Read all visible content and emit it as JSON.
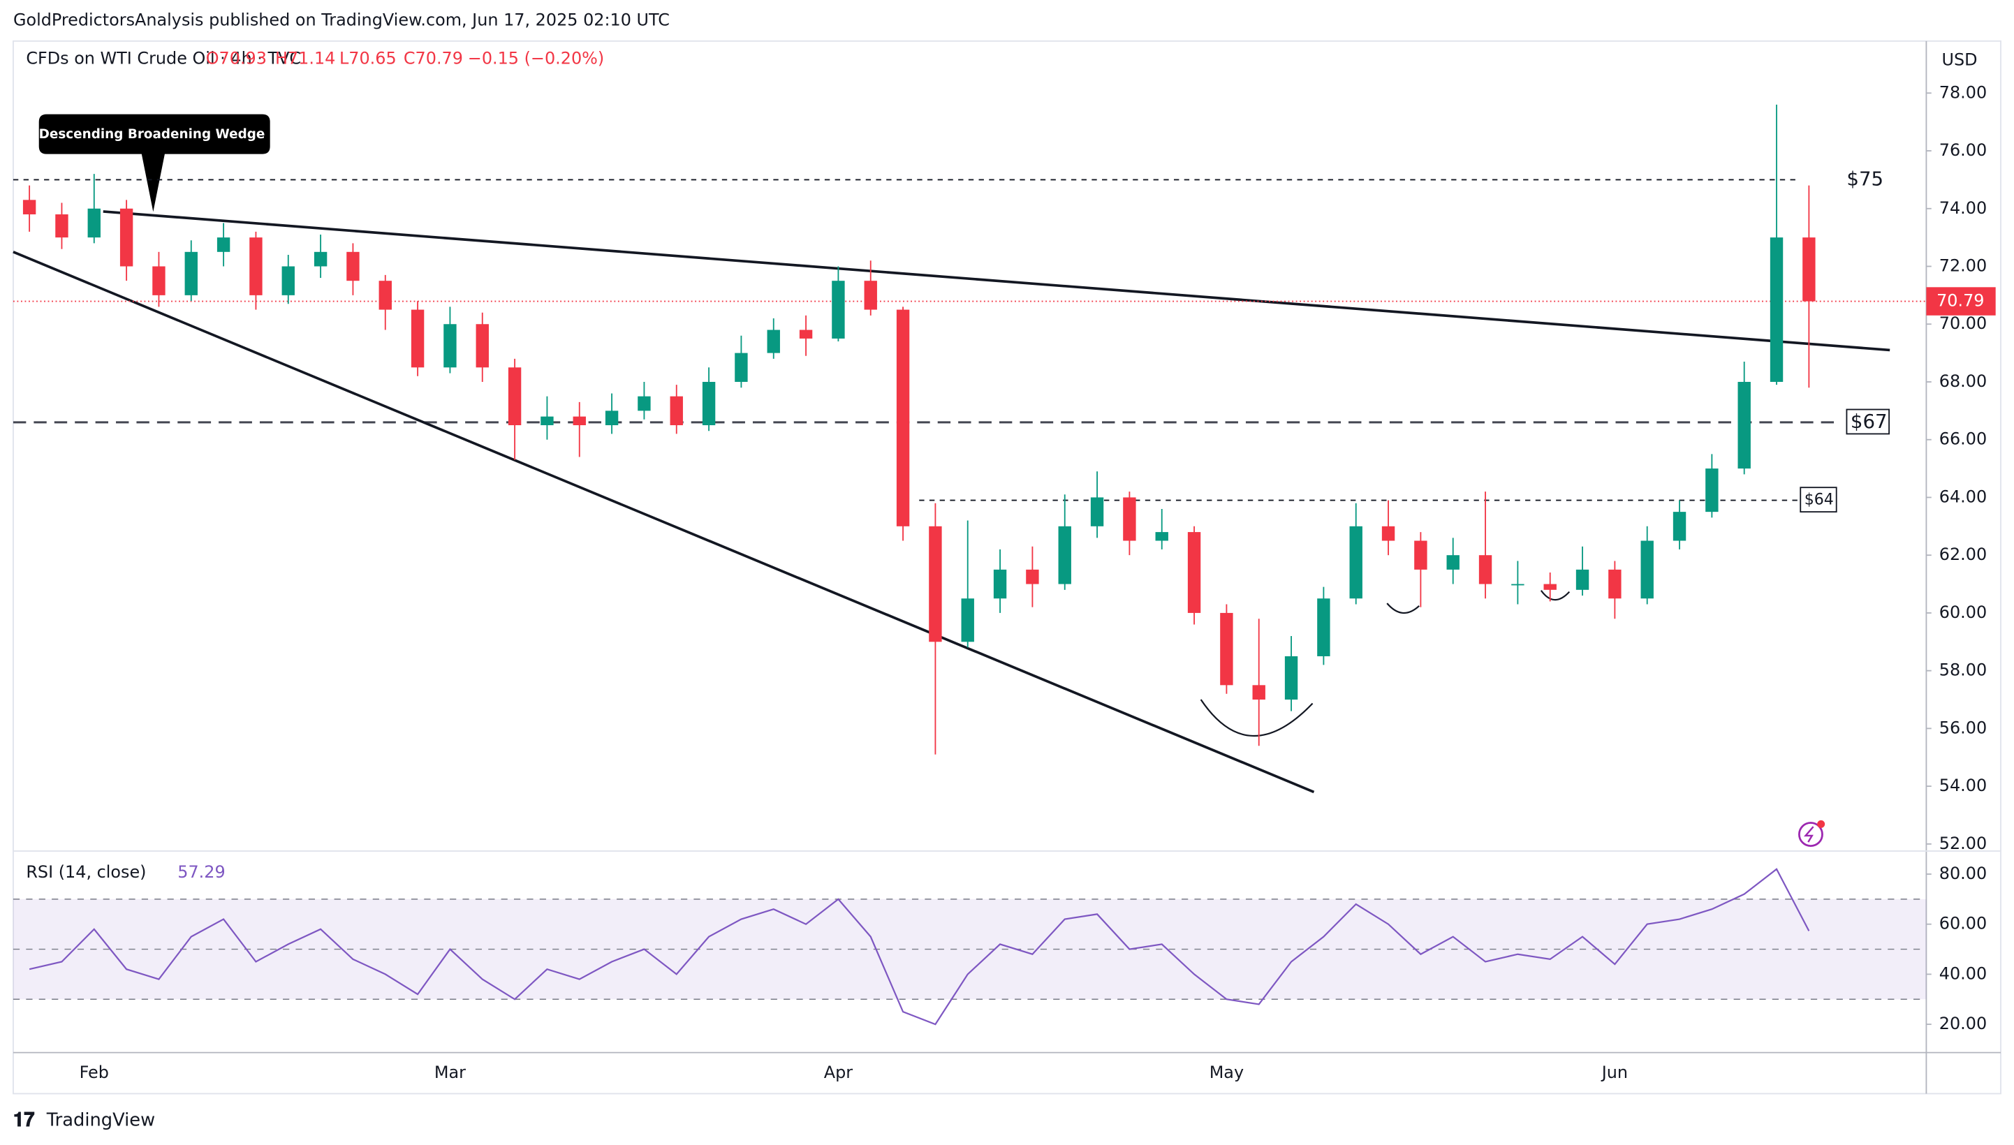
{
  "header": {
    "publisher": "GoldPredictorsAnalysis published on TradingView.com, Jun 17, 2025 02:10 UTC",
    "footer": "TradingView"
  },
  "chart_data": [
    {
      "type": "candlestick",
      "title": "CFDs on WTI Crude Oil · 4h · TVC",
      "ohlc": [
        "O70.93",
        "H71.14",
        "L70.65",
        "C70.79",
        "−0.15 (−0.20%)"
      ],
      "currency": "USD",
      "annotation": "Descending Broadening Wedge",
      "up_color": "#089981",
      "down_color": "#f23645",
      "last_color": "#f23645",
      "categories": [
        null,
        null,
        "Feb",
        null,
        null,
        null,
        null,
        null,
        null,
        null,
        null,
        null,
        null,
        "Mar",
        null,
        null,
        null,
        null,
        null,
        null,
        null,
        null,
        null,
        null,
        null,
        "Apr",
        null,
        null,
        null,
        null,
        null,
        null,
        null,
        null,
        null,
        null,
        null,
        "May",
        null,
        null,
        null,
        null,
        null,
        null,
        null,
        null,
        null,
        null,
        null,
        "Jun",
        null,
        null,
        null,
        null,
        null,
        null
      ],
      "open": [
        74.3,
        73.8,
        73.0,
        74.0,
        72.0,
        71.0,
        72.5,
        73.0,
        71.0,
        72.0,
        72.5,
        71.5,
        70.5,
        68.5,
        70.0,
        68.5,
        66.5,
        66.8,
        66.5,
        67.0,
        67.5,
        66.5,
        68.0,
        69.0,
        69.8,
        69.5,
        71.5,
        70.5,
        63.0,
        59.0,
        60.5,
        61.5,
        61.0,
        63.0,
        64.0,
        62.5,
        62.8,
        60.0,
        57.5,
        57.0,
        58.5,
        60.5,
        63.0,
        62.5,
        61.5,
        62.0,
        61.0,
        61.0,
        60.8,
        61.5,
        60.5,
        62.5,
        63.5,
        65.0,
        68.0,
        73.0
      ],
      "high": [
        74.8,
        74.2,
        75.2,
        74.3,
        72.5,
        72.9,
        73.5,
        73.2,
        72.4,
        73.1,
        72.8,
        71.7,
        70.8,
        70.6,
        70.4,
        68.8,
        67.5,
        67.3,
        67.6,
        68.0,
        67.9,
        68.5,
        69.6,
        70.2,
        70.3,
        72.0,
        72.2,
        70.6,
        63.8,
        63.2,
        62.2,
        62.3,
        64.1,
        64.9,
        64.2,
        63.6,
        63.0,
        60.3,
        59.8,
        59.2,
        60.9,
        63.8,
        63.9,
        62.8,
        62.6,
        64.2,
        61.8,
        61.4,
        62.3,
        61.8,
        63.0,
        63.9,
        65.5,
        68.7,
        77.6,
        74.8
      ],
      "low": [
        73.2,
        72.6,
        72.8,
        71.5,
        70.6,
        70.8,
        72.0,
        70.5,
        70.7,
        71.6,
        71.0,
        69.8,
        68.2,
        68.3,
        68.0,
        65.3,
        66.0,
        65.4,
        66.2,
        66.7,
        66.2,
        66.3,
        67.8,
        68.8,
        68.9,
        69.4,
        70.3,
        62.5,
        55.1,
        58.8,
        60.0,
        60.2,
        60.8,
        62.6,
        62.0,
        62.2,
        59.6,
        57.2,
        55.4,
        56.6,
        58.2,
        60.3,
        62.0,
        60.2,
        61.0,
        60.5,
        60.3,
        60.4,
        60.6,
        59.8,
        60.3,
        62.2,
        63.3,
        64.8,
        67.9,
        67.8
      ],
      "close": [
        73.8,
        73.0,
        74.0,
        72.0,
        71.0,
        72.5,
        73.0,
        71.0,
        72.0,
        72.5,
        71.5,
        70.5,
        68.5,
        70.0,
        68.5,
        66.5,
        66.8,
        66.5,
        67.0,
        67.5,
        66.5,
        68.0,
        69.0,
        69.8,
        69.5,
        71.5,
        70.5,
        63.0,
        59.0,
        60.5,
        61.5,
        61.0,
        63.0,
        64.0,
        62.5,
        62.8,
        60.0,
        57.5,
        57.0,
        58.5,
        60.5,
        63.0,
        62.5,
        61.5,
        62.0,
        61.0,
        61.0,
        60.8,
        61.5,
        60.5,
        62.5,
        63.5,
        65.0,
        68.0,
        73.0,
        70.79
      ],
      "ylim": [
        51.8,
        79.8
      ],
      "yticks": [
        {
          "value": 52,
          "label": "52.00"
        },
        {
          "value": 54,
          "label": "54.00"
        },
        {
          "value": 56,
          "label": "56.00"
        },
        {
          "value": 58,
          "label": "58.00"
        },
        {
          "value": 60,
          "label": "60.00"
        },
        {
          "value": 62,
          "label": "62.00"
        },
        {
          "value": 64,
          "label": "64.00"
        },
        {
          "value": 66,
          "label": "66.00"
        },
        {
          "value": 68,
          "label": "68.00"
        },
        {
          "value": 70,
          "label": "70.00"
        },
        {
          "value": 72,
          "label": "72.00"
        },
        {
          "value": 74,
          "label": "74.00"
        },
        {
          "value": 76,
          "label": "76.00"
        },
        {
          "value": 78,
          "label": "78.00"
        }
      ],
      "levels": [
        {
          "value": 75,
          "label": "$75",
          "style": "short",
          "from": -0.5,
          "boxed": false
        },
        {
          "value": 66.6,
          "label": "$67",
          "style": "long",
          "from": -0.5,
          "boxed": true
        },
        {
          "value": 63.9,
          "label": "$64",
          "style": "short",
          "from": 27.5,
          "boxed": true
        }
      ],
      "trendlines": [
        {
          "x": [
            2.28,
            57.5
          ],
          "y": [
            73.9,
            69.1
          ]
        },
        {
          "x": [
            -0.5,
            39.7
          ],
          "y": [
            72.5,
            53.8
          ]
        }
      ]
    },
    {
      "type": "line",
      "title": "RSI (14, close)",
      "last_value_label": "57.29",
      "color": "#7e57c2",
      "values": [
        42,
        45,
        58,
        42,
        38,
        55,
        62,
        45,
        52,
        58,
        46,
        40,
        32,
        50,
        38,
        30,
        42,
        38,
        45,
        50,
        40,
        55,
        62,
        66,
        60,
        70,
        55,
        25,
        20,
        40,
        52,
        48,
        62,
        64,
        50,
        52,
        40,
        30,
        28,
        45,
        55,
        68,
        60,
        48,
        55,
        45,
        48,
        46,
        55,
        44,
        60,
        62,
        66,
        72,
        82,
        57.29
      ],
      "ylim": [
        8.7,
        88.7
      ],
      "yticks": [
        {
          "value": 20,
          "label": "20.00"
        },
        {
          "value": 40,
          "label": "40.00"
        },
        {
          "value": 60,
          "label": "60.00"
        },
        {
          "value": 80,
          "label": "80.00"
        }
      ],
      "band": [
        30,
        70
      ],
      "midline": 50
    }
  ]
}
